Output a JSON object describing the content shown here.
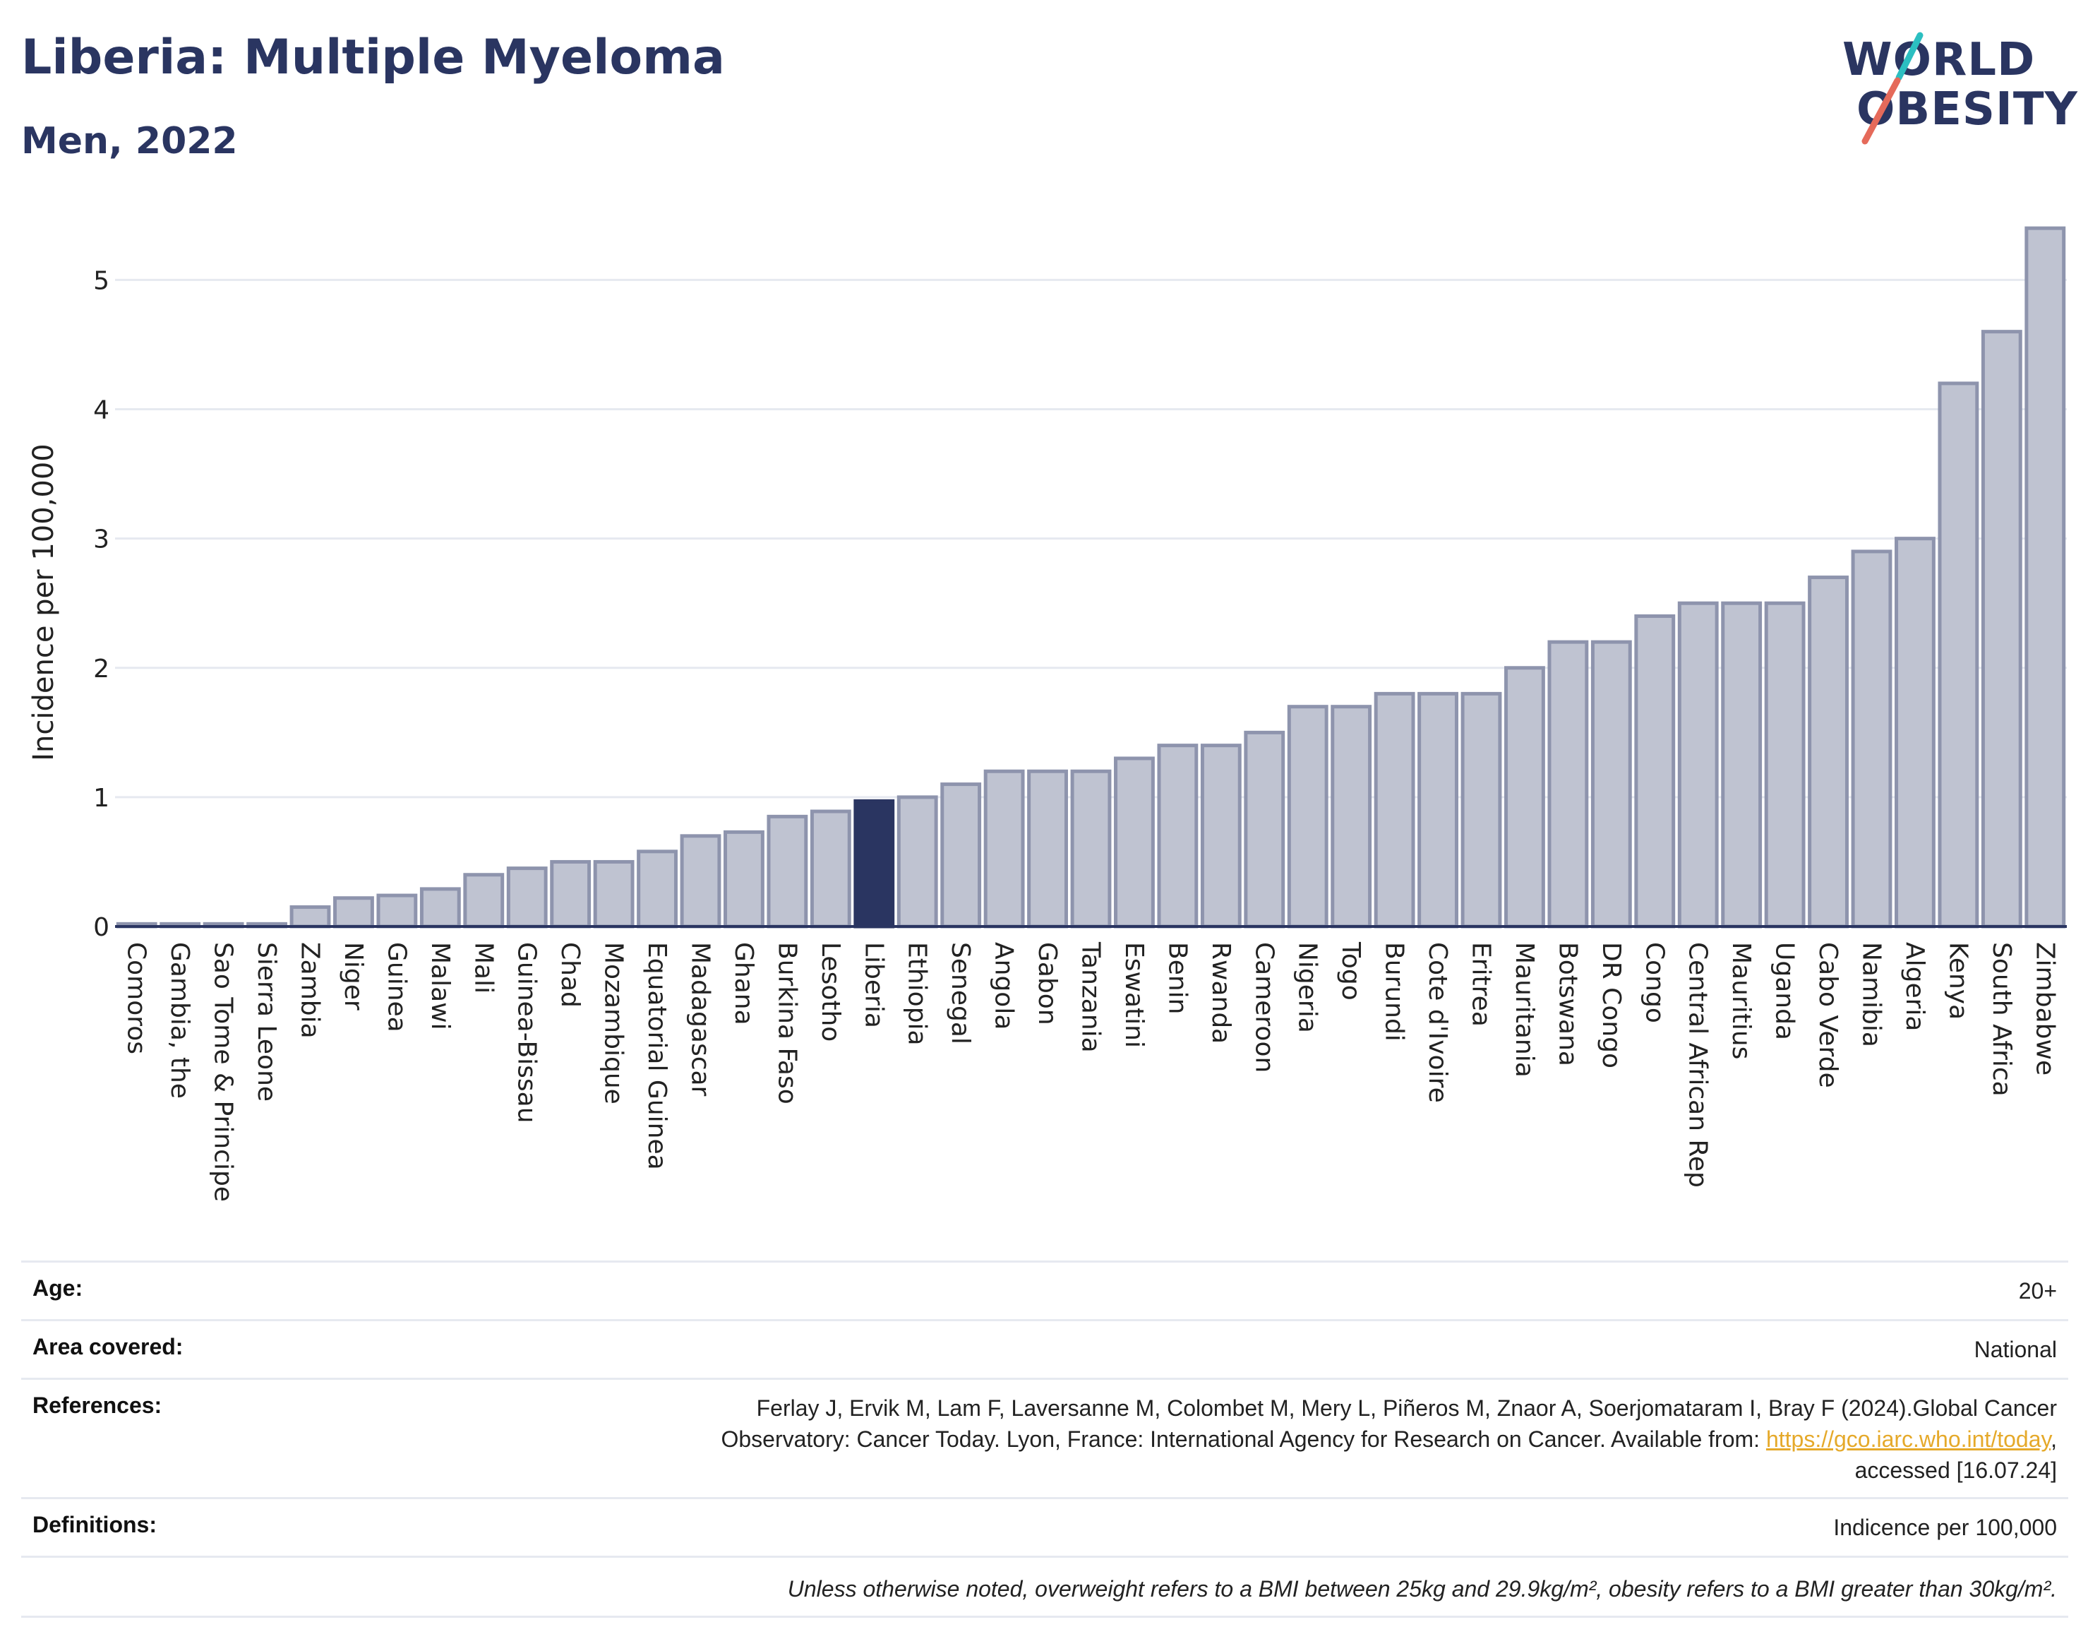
{
  "header": {
    "title": "Liberia: Multiple Myeloma",
    "subtitle": "Men, 2022"
  },
  "logo": {
    "line1": "WORLD",
    "line2": "OBESITY",
    "colors": {
      "navy": "#2a3561",
      "teal": "#2cbfc1",
      "coral": "#e56a5a"
    }
  },
  "colors": {
    "bar": "#bfc3d1",
    "bar_stroke": "#8e94ad",
    "highlight": "#2a3561",
    "grid": "#e6e9f0",
    "axis": "#2a3561"
  },
  "chart_data": {
    "type": "bar",
    "title": "",
    "xlabel": "",
    "ylabel": "Incidence per 100,000",
    "ylim": [
      0,
      5.45
    ],
    "yticks": [
      0,
      1,
      2,
      3,
      4,
      5
    ],
    "grid": true,
    "highlight": "Liberia",
    "categories": [
      "Comoros",
      "Gambia, the",
      "Sao Tome & Principe",
      "Sierra Leone",
      "Zambia",
      "Niger",
      "Guinea",
      "Malawi",
      "Mali",
      "Guinea-Bissau",
      "Chad",
      "Mozambique",
      "Equatorial Guinea",
      "Madagascar",
      "Ghana",
      "Burkina Faso",
      "Lesotho",
      "Liberia",
      "Ethiopia",
      "Senegal",
      "Angola",
      "Gabon",
      "Tanzania",
      "Eswatini",
      "Benin",
      "Rwanda",
      "Cameroon",
      "Nigeria",
      "Togo",
      "Burundi",
      "Cote d'Ivoire",
      "Eritrea",
      "Mauritania",
      "Botswana",
      "DR Congo",
      "Congo",
      "Central African Rep",
      "Mauritius",
      "Uganda",
      "Cabo Verde",
      "Namibia",
      "Algeria",
      "Kenya",
      "South Africa",
      "Zimbabwe"
    ],
    "values": [
      0.02,
      0.02,
      0.02,
      0.02,
      0.15,
      0.22,
      0.24,
      0.29,
      0.4,
      0.45,
      0.5,
      0.5,
      0.58,
      0.7,
      0.73,
      0.85,
      0.89,
      0.97,
      1.0,
      1.1,
      1.2,
      1.2,
      1.2,
      1.3,
      1.4,
      1.4,
      1.5,
      1.7,
      1.7,
      1.8,
      1.8,
      1.8,
      2.0,
      2.2,
      2.2,
      2.4,
      2.5,
      2.5,
      2.5,
      2.7,
      2.9,
      3.0,
      4.2,
      4.6,
      5.4
    ]
  },
  "info": {
    "age_label": "Age:",
    "age_value": "20+",
    "area_label": "Area covered:",
    "area_value": "National",
    "references_label": "References:",
    "references_line1": "Ferlay J, Ervik M, Lam F, Laversanne M, Colombet M, Mery L, Piñeros M, Znaor A, Soerjomataram I, Bray F (2024).Global Cancer",
    "references_line2": "Observatory: Cancer Today. Lyon, France: International Agency for Research on Cancer. Available from: ",
    "references_link": "https://gco.iarc.who.int/today",
    "references_line2_end": ",",
    "references_line3": "accessed [16.07.24]",
    "definitions_label": "Definitions:",
    "definitions_value": "Indicence per 100,000",
    "note": "Unless otherwise noted, overweight refers to a BMI between 25kg and 29.9kg/m², obesity refers to a BMI greater than 30kg/m²."
  }
}
